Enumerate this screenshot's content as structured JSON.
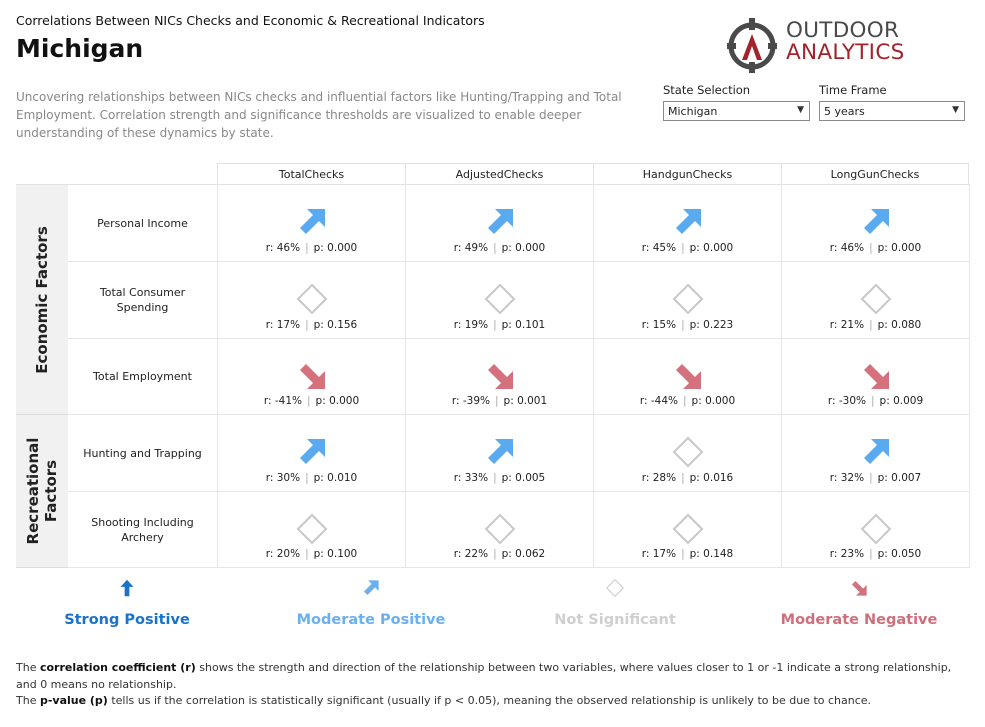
{
  "header": {
    "supertitle": "Correlations Between NICs Checks and Economic & Recreational Indicators",
    "title": "Michigan",
    "description": "Uncovering relationships between NICs checks and influential factors like Hunting/Trapping and Total Employment. Correlation strength and significance thresholds are visualized to enable deeper understanding of these dynamics by state."
  },
  "logo": {
    "line1": "OUTDOOR",
    "line2": "ANALYTICS",
    "colors": {
      "dark": "#4a4a4a",
      "red": "#a3232a"
    }
  },
  "filters": {
    "state": {
      "label": "State Selection",
      "value": "Michigan"
    },
    "timeframe": {
      "label": "Time Frame",
      "value": "5 years"
    }
  },
  "columns": [
    "TotalChecks",
    "AdjustedChecks",
    "HandgunChecks",
    "LongGunChecks"
  ],
  "groups": [
    {
      "label": "Economic Factors"
    },
    {
      "label": "Recreational Factors"
    }
  ],
  "rows": [
    {
      "label": "Personal Income",
      "cells": [
        {
          "type": "moderate-positive",
          "r": "r: 46%",
          "p": "p: 0.000"
        },
        {
          "type": "moderate-positive",
          "r": "r: 49%",
          "p": "p: 0.000"
        },
        {
          "type": "moderate-positive",
          "r": "r: 45%",
          "p": "p: 0.000"
        },
        {
          "type": "moderate-positive",
          "r": "r: 46%",
          "p": "p: 0.000"
        }
      ]
    },
    {
      "label": "Total Consumer Spending",
      "cells": [
        {
          "type": "not-significant",
          "r": "r: 17%",
          "p": "p: 0.156"
        },
        {
          "type": "not-significant",
          "r": "r: 19%",
          "p": "p: 0.101"
        },
        {
          "type": "not-significant",
          "r": "r: 15%",
          "p": "p: 0.223"
        },
        {
          "type": "not-significant",
          "r": "r: 21%",
          "p": "p: 0.080"
        }
      ]
    },
    {
      "label": "Total Employment",
      "cells": [
        {
          "type": "moderate-negative",
          "r": "r: -41%",
          "p": "p: 0.000"
        },
        {
          "type": "moderate-negative",
          "r": "r: -39%",
          "p": "p: 0.001"
        },
        {
          "type": "moderate-negative",
          "r": "r: -44%",
          "p": "p: 0.000"
        },
        {
          "type": "moderate-negative",
          "r": "r: -30%",
          "p": "p: 0.009"
        }
      ]
    },
    {
      "label": "Hunting and Trapping",
      "cells": [
        {
          "type": "moderate-positive",
          "r": "r: 30%",
          "p": "p: 0.010"
        },
        {
          "type": "moderate-positive",
          "r": "r: 33%",
          "p": "p: 0.005"
        },
        {
          "type": "not-significant",
          "r": "r: 28%",
          "p": "p: 0.016"
        },
        {
          "type": "moderate-positive",
          "r": "r: 32%",
          "p": "p: 0.007"
        }
      ]
    },
    {
      "label": "Shooting Including Archery",
      "cells": [
        {
          "type": "not-significant",
          "r": "r: 20%",
          "p": "p: 0.100"
        },
        {
          "type": "not-significant",
          "r": "r: 22%",
          "p": "p: 0.062"
        },
        {
          "type": "not-significant",
          "r": "r: 17%",
          "p": "p: 0.148"
        },
        {
          "type": "not-significant",
          "r": "r: 23%",
          "p": "p: 0.050"
        }
      ]
    }
  ],
  "legend": [
    {
      "type": "strong-positive",
      "label": "Strong Positive",
      "color": "#1a73c8"
    },
    {
      "type": "moderate-positive",
      "label": "Moderate Positive",
      "color": "#6ab0f0"
    },
    {
      "type": "not-significant",
      "label": "Not Significant",
      "color": "#cfcfcf"
    },
    {
      "type": "moderate-negative",
      "label": "Moderate Negative",
      "color": "#d1737e"
    }
  ],
  "colors": {
    "moderate-positive": "#5aaaf0",
    "strong-positive": "#1a73c8",
    "not-significant": "#c8c8c8",
    "moderate-negative": "#d4717d"
  },
  "footnotes": {
    "r_term": "correlation coefficient (r)",
    "r_prefix": "The ",
    "r_text": " shows the strength and direction of the relationship between two variables, where values closer to 1 or -1 indicate a strong relationship, and 0 means no relationship.",
    "p_prefix": "The ",
    "p_term": "p-value (p)",
    "p_text": " tells us if the correlation is statistically significant (usually if p < 0.05), meaning the observed relationship is unlikely to be due to chance."
  }
}
